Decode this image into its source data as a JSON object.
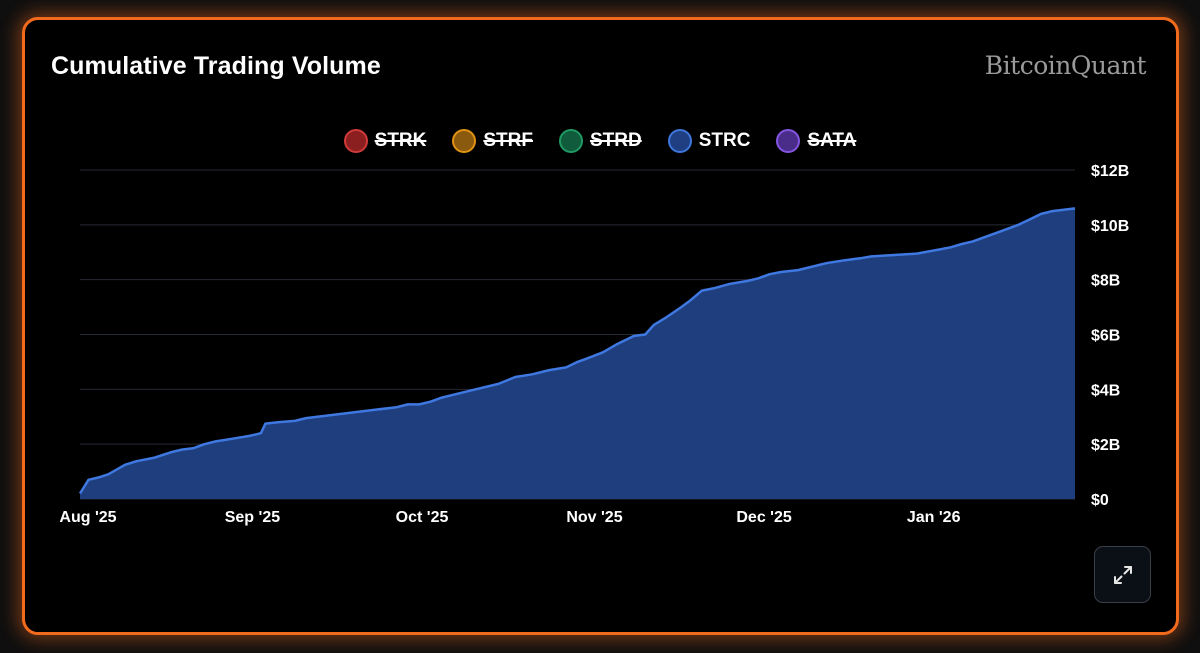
{
  "title": "Cumulative Trading Volume",
  "brand": "BitcoinQuant",
  "legend": [
    {
      "label": "STRK",
      "fill": "#8b1e1e",
      "stroke": "#d03a3a",
      "active": false
    },
    {
      "label": "STRF",
      "fill": "#8a5a0e",
      "stroke": "#e09214",
      "active": false
    },
    {
      "label": "STRD",
      "fill": "#0f5b3c",
      "stroke": "#1f9a64",
      "active": false
    },
    {
      "label": "STRC",
      "fill": "#1f3f82",
      "stroke": "#3f76dd",
      "active": true
    },
    {
      "label": "SATA",
      "fill": "#4a2d8a",
      "stroke": "#8455e0",
      "active": false
    }
  ],
  "colors": {
    "accent": "#f26b1d",
    "area_fill": "#1e3e7e",
    "area_line": "#3f78e0",
    "grid": "#262a33"
  },
  "expand_icon": "expand-icon",
  "chart_data": {
    "type": "area",
    "title": "Cumulative Trading Volume",
    "series": [
      {
        "name": "STRC",
        "points": [
          [
            0,
            0.2
          ],
          [
            0.15,
            0.7
          ],
          [
            0.35,
            0.8
          ],
          [
            0.5,
            0.9
          ],
          [
            0.8,
            1.25
          ],
          [
            1.0,
            1.38
          ],
          [
            1.3,
            1.5
          ],
          [
            1.6,
            1.7
          ],
          [
            1.8,
            1.8
          ],
          [
            2.0,
            1.85
          ],
          [
            2.2,
            2.0
          ],
          [
            2.4,
            2.1
          ],
          [
            2.7,
            2.2
          ],
          [
            3.0,
            2.3
          ],
          [
            3.2,
            2.4
          ],
          [
            3.28,
            2.75
          ],
          [
            3.5,
            2.8
          ],
          [
            3.8,
            2.85
          ],
          [
            4.0,
            2.95
          ],
          [
            4.4,
            3.05
          ],
          [
            4.8,
            3.15
          ],
          [
            5.2,
            3.25
          ],
          [
            5.6,
            3.35
          ],
          [
            5.8,
            3.45
          ],
          [
            6.0,
            3.45
          ],
          [
            6.2,
            3.55
          ],
          [
            6.4,
            3.7
          ],
          [
            6.6,
            3.8
          ],
          [
            7.0,
            4.0
          ],
          [
            7.4,
            4.2
          ],
          [
            7.7,
            4.45
          ],
          [
            8.0,
            4.55
          ],
          [
            8.3,
            4.7
          ],
          [
            8.6,
            4.8
          ],
          [
            8.8,
            5.0
          ],
          [
            9.0,
            5.15
          ],
          [
            9.25,
            5.35
          ],
          [
            9.5,
            5.65
          ],
          [
            9.8,
            5.95
          ],
          [
            10.0,
            6.0
          ],
          [
            10.15,
            6.35
          ],
          [
            10.35,
            6.6
          ],
          [
            10.6,
            6.95
          ],
          [
            10.8,
            7.25
          ],
          [
            11.0,
            7.6
          ],
          [
            11.2,
            7.68
          ],
          [
            11.5,
            7.85
          ],
          [
            11.8,
            7.95
          ],
          [
            12.0,
            8.05
          ],
          [
            12.2,
            8.2
          ],
          [
            12.4,
            8.28
          ],
          [
            12.7,
            8.35
          ],
          [
            13.0,
            8.5
          ],
          [
            13.2,
            8.6
          ],
          [
            13.5,
            8.7
          ],
          [
            13.8,
            8.78
          ],
          [
            14.0,
            8.85
          ],
          [
            14.4,
            8.9
          ],
          [
            14.8,
            8.95
          ],
          [
            15.2,
            9.1
          ],
          [
            15.4,
            9.18
          ],
          [
            15.6,
            9.3
          ],
          [
            15.8,
            9.4
          ],
          [
            16.0,
            9.55
          ],
          [
            16.2,
            9.7
          ],
          [
            16.4,
            9.85
          ],
          [
            16.6,
            10.0
          ],
          [
            16.8,
            10.2
          ],
          [
            17.0,
            10.4
          ],
          [
            17.2,
            10.5
          ],
          [
            17.4,
            10.55
          ],
          [
            17.6,
            10.6
          ]
        ]
      }
    ],
    "x_ticks": [
      {
        "x": 0,
        "label": "Aug '25"
      },
      {
        "x": 3.05,
        "label": "Sep '25"
      },
      {
        "x": 6.05,
        "label": "Oct '25"
      },
      {
        "x": 9.1,
        "label": "Nov '25"
      },
      {
        "x": 12.1,
        "label": "Dec '25"
      },
      {
        "x": 15.1,
        "label": "Jan '26"
      }
    ],
    "xlim": [
      0,
      17.6
    ],
    "ylim": [
      0,
      12
    ],
    "y_ticks": [
      {
        "v": 0,
        "label": "$0"
      },
      {
        "v": 2,
        "label": "$2B"
      },
      {
        "v": 4,
        "label": "$4B"
      },
      {
        "v": 6,
        "label": "$6B"
      },
      {
        "v": 8,
        "label": "$8B"
      },
      {
        "v": 10,
        "label": "$10B"
      },
      {
        "v": 12,
        "label": "$12B"
      }
    ],
    "grid": true,
    "yaxis_position": "right",
    "legend_position": "top-center"
  }
}
